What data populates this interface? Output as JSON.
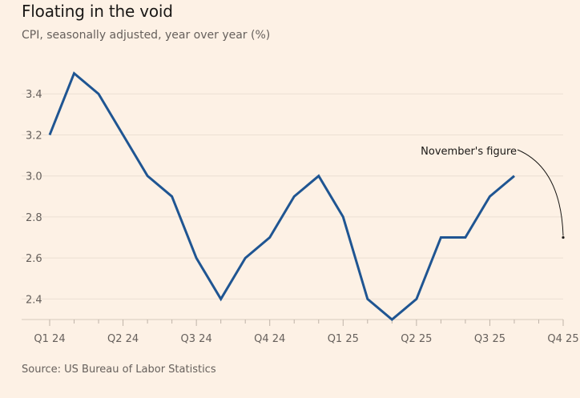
{
  "header": {
    "title": "Floating in the void",
    "subtitle": "CPI, seasonally adjusted, year over year (%)"
  },
  "footer": {
    "source": "Source: US Bureau of Labor Statistics"
  },
  "colors": {
    "background": "#fdf1e5",
    "line": "#1f5592",
    "grid": "#ece0d3",
    "text": "#66605c"
  },
  "chart_data": {
    "type": "line",
    "title": "Floating in the void",
    "subtitle": "CPI, seasonally adjusted, year over year (%)",
    "xlabel": "",
    "ylabel": "",
    "x_ticks": [
      "Q1 24",
      "Q2 24",
      "Q3 24",
      "Q4 24",
      "Q1 25",
      "Q2 25",
      "Q3 25",
      "Q4 25"
    ],
    "y_ticks": [
      2.4,
      2.6,
      2.8,
      3.0,
      3.2,
      3.4
    ],
    "ylim": [
      2.3,
      3.6
    ],
    "xlim": [
      0,
      21
    ],
    "grid": true,
    "series": [
      {
        "name": "CPI",
        "x": [
          0,
          1,
          2,
          3,
          4,
          5,
          6,
          7,
          8,
          9,
          10,
          11,
          12,
          13,
          14,
          15,
          16,
          17,
          18,
          19
        ],
        "values": [
          3.2,
          3.5,
          3.4,
          3.2,
          3.0,
          2.9,
          2.6,
          2.4,
          2.6,
          2.7,
          2.9,
          3.0,
          2.8,
          2.4,
          2.3,
          2.4,
          2.7,
          2.7,
          2.9,
          3.0
        ]
      }
    ],
    "missing_point": {
      "x": 21,
      "value": 2.7
    },
    "annotation": "November's figure"
  }
}
